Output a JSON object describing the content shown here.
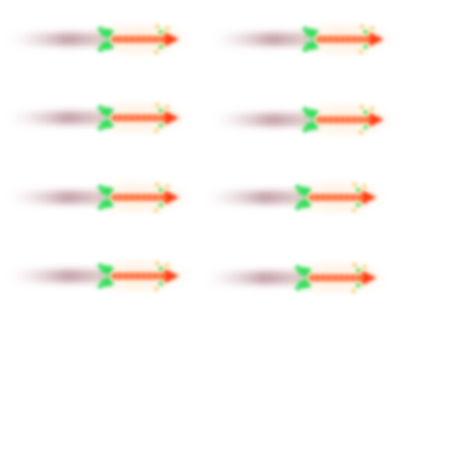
{
  "sprite_sheet": {
    "frame_count": 8,
    "colors": {
      "trail": "#7a2a3a",
      "trail_fade": "#c8a0a8",
      "core": "#ff5a1e",
      "core_bright": "#ff3a0a",
      "beads": "#ffb080",
      "fins": "#2ee05a",
      "sparks": "#f5c040",
      "glow": "#ffe8d0",
      "background": "#ffffff"
    },
    "frames": [
      {
        "icon": "missile-sprite"
      },
      {
        "icon": "missile-sprite"
      },
      {
        "icon": "missile-sprite"
      },
      {
        "icon": "missile-sprite"
      },
      {
        "icon": "missile-sprite"
      },
      {
        "icon": "missile-sprite"
      },
      {
        "icon": "missile-sprite"
      },
      {
        "icon": "missile-sprite"
      }
    ]
  }
}
